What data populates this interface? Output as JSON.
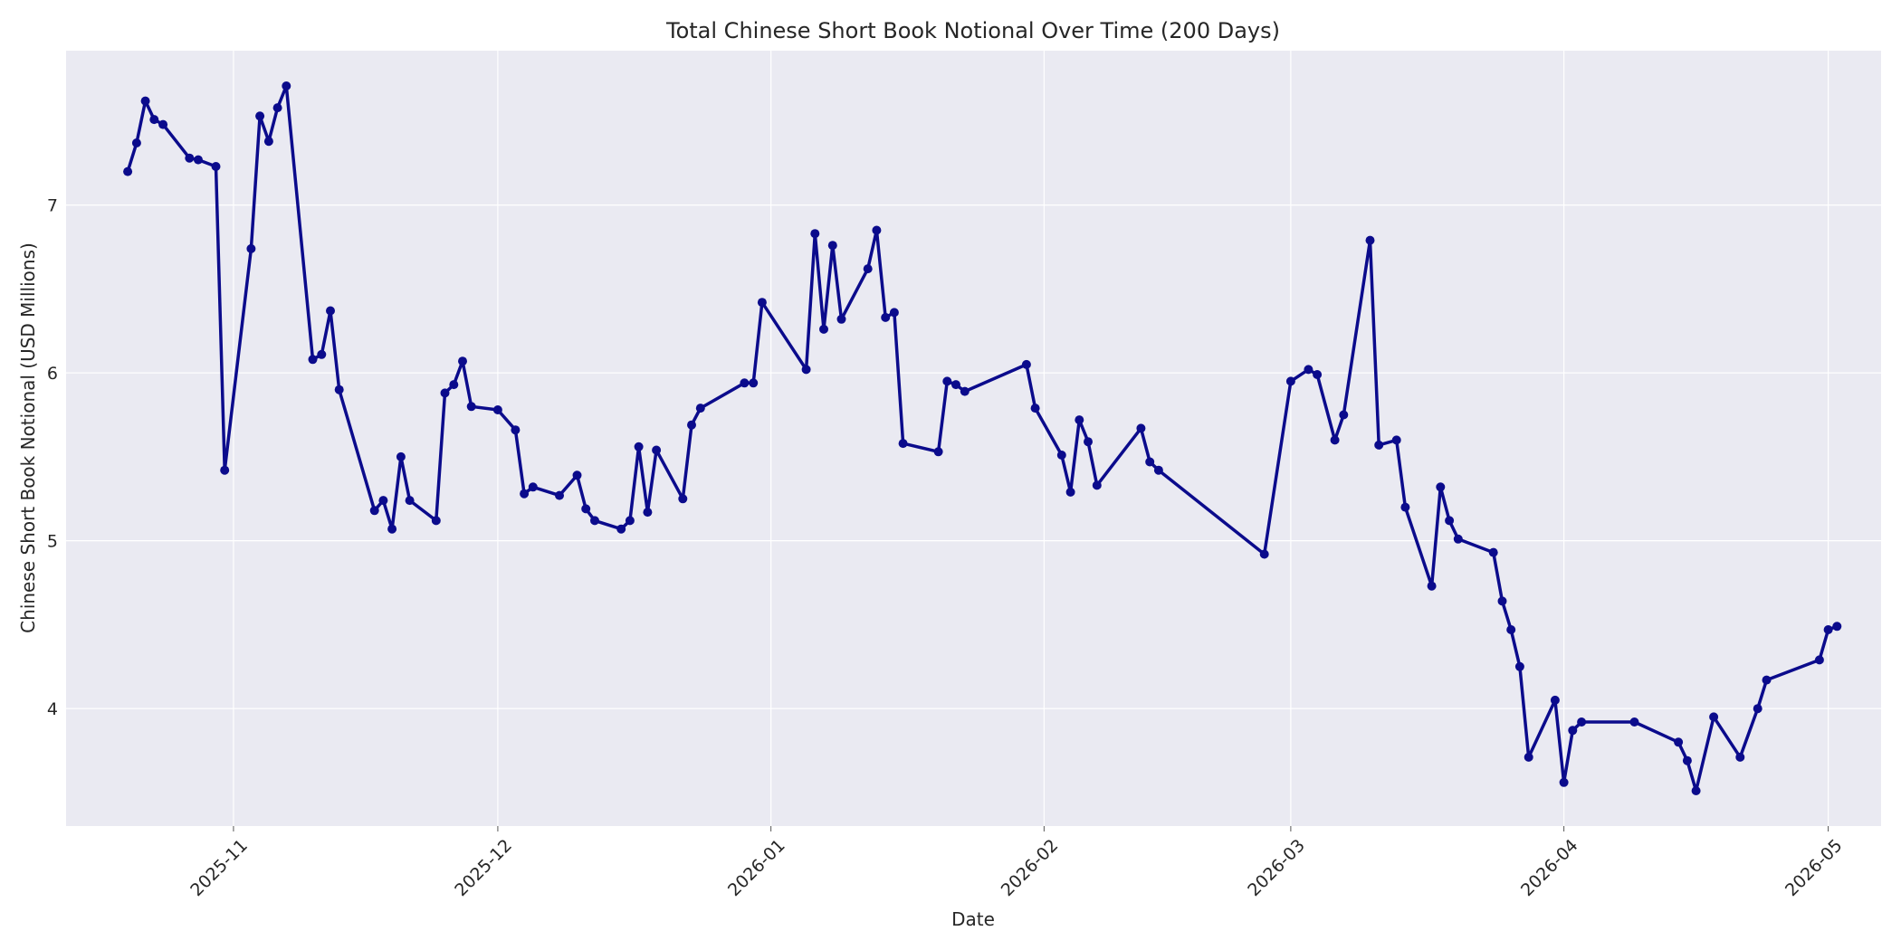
{
  "chart_data": {
    "type": "line",
    "title": "Total Chinese Short Book Notional Over Time (200 Days)",
    "xlabel": "Date",
    "ylabel": "Chinese Short Book Notional (USD Millions)",
    "x_axis_type": "date",
    "xlim": [
      "2025-10-13",
      "2026-05-07"
    ],
    "ylim": [
      3.3,
      7.92
    ],
    "x_ticks": [
      {
        "date": "2025-11-01",
        "label": "2025-11"
      },
      {
        "date": "2025-12-01",
        "label": "2025-12"
      },
      {
        "date": "2026-01-01",
        "label": "2026-01"
      },
      {
        "date": "2026-02-01",
        "label": "2026-02"
      },
      {
        "date": "2026-03-01",
        "label": "2026-03"
      },
      {
        "date": "2026-04-01",
        "label": "2026-04"
      },
      {
        "date": "2026-05-01",
        "label": "2026-05"
      }
    ],
    "y_ticks": [
      4,
      5,
      6,
      7
    ],
    "grid": true,
    "colors": {
      "line": "#0b0b8c",
      "plot_background": "#eaeaf2",
      "grid": "#ffffff"
    },
    "series": [
      {
        "x": [
          "2025-10-20",
          "2025-10-21",
          "2025-10-22",
          "2025-10-23",
          "2025-10-24",
          "2025-10-27",
          "2025-10-28",
          "2025-10-30",
          "2025-10-31",
          "2025-11-03",
          "2025-11-04",
          "2025-11-05",
          "2025-11-06",
          "2025-11-07",
          "2025-11-10",
          "2025-11-11",
          "2025-11-12",
          "2025-11-13",
          "2025-11-17",
          "2025-11-18",
          "2025-11-19",
          "2025-11-20",
          "2025-11-21",
          "2025-11-24",
          "2025-11-25",
          "2025-11-26",
          "2025-11-27",
          "2025-11-28",
          "2025-12-01",
          "2025-12-03",
          "2025-12-04",
          "2025-12-05",
          "2025-12-08",
          "2025-12-10",
          "2025-12-11",
          "2025-12-12",
          "2025-12-15",
          "2025-12-16",
          "2025-12-17",
          "2025-12-18",
          "2025-12-19",
          "2025-12-22",
          "2025-12-23",
          "2025-12-24",
          "2025-12-29",
          "2025-12-30",
          "2025-12-31",
          "2026-01-05",
          "2026-01-06",
          "2026-01-07",
          "2026-01-08",
          "2026-01-09",
          "2026-01-12",
          "2026-01-13",
          "2026-01-14",
          "2026-01-15",
          "2026-01-16",
          "2026-01-20",
          "2026-01-21",
          "2026-01-22",
          "2026-01-23",
          "2026-01-30",
          "2026-01-31",
          "2026-02-03",
          "2026-02-04",
          "2026-02-05",
          "2026-02-06",
          "2026-02-07",
          "2026-02-12",
          "2026-02-13",
          "2026-02-14",
          "2026-02-26",
          "2026-03-01",
          "2026-03-03",
          "2026-03-04",
          "2026-03-06",
          "2026-03-07",
          "2026-03-10",
          "2026-03-11",
          "2026-03-13",
          "2026-03-14",
          "2026-03-17",
          "2026-03-18",
          "2026-03-19",
          "2026-03-20",
          "2026-03-24",
          "2026-03-25",
          "2026-03-26",
          "2026-03-27",
          "2026-03-28",
          "2026-03-31",
          "2026-04-01",
          "2026-04-02",
          "2026-04-03",
          "2026-04-09",
          "2026-04-14",
          "2026-04-15",
          "2026-04-16",
          "2026-04-18",
          "2026-04-21",
          "2026-04-23",
          "2026-04-24",
          "2026-04-30",
          "2026-05-01",
          "2026-05-02"
        ],
        "y": [
          7.2,
          7.37,
          7.62,
          7.51,
          7.48,
          7.28,
          7.27,
          7.23,
          5.42,
          6.74,
          7.53,
          7.38,
          7.58,
          7.71,
          6.08,
          6.11,
          6.37,
          5.9,
          5.18,
          5.24,
          5.07,
          5.5,
          5.24,
          5.12,
          5.88,
          5.93,
          6.07,
          5.8,
          5.78,
          5.66,
          5.28,
          5.32,
          5.27,
          5.39,
          5.19,
          5.12,
          5.07,
          5.12,
          5.56,
          5.17,
          5.54,
          5.25,
          5.69,
          5.79,
          5.94,
          5.94,
          6.42,
          6.02,
          6.83,
          6.26,
          6.76,
          6.32,
          6.62,
          6.85,
          6.33,
          6.36,
          5.58,
          5.53,
          5.95,
          5.93,
          5.89,
          6.05,
          5.79,
          5.51,
          5.29,
          5.72,
          5.59,
          5.33,
          5.67,
          5.47,
          5.42,
          4.92,
          5.95,
          6.02,
          5.99,
          5.6,
          5.75,
          6.79,
          5.57,
          5.6,
          5.2,
          4.73,
          5.32,
          5.12,
          5.01,
          4.93,
          4.64,
          4.47,
          4.25,
          3.71,
          4.05,
          3.56,
          3.87,
          3.92,
          3.92,
          3.8,
          3.69,
          3.51,
          3.95,
          3.71,
          4.0,
          4.17,
          4.29,
          4.47,
          4.49
        ]
      }
    ]
  }
}
